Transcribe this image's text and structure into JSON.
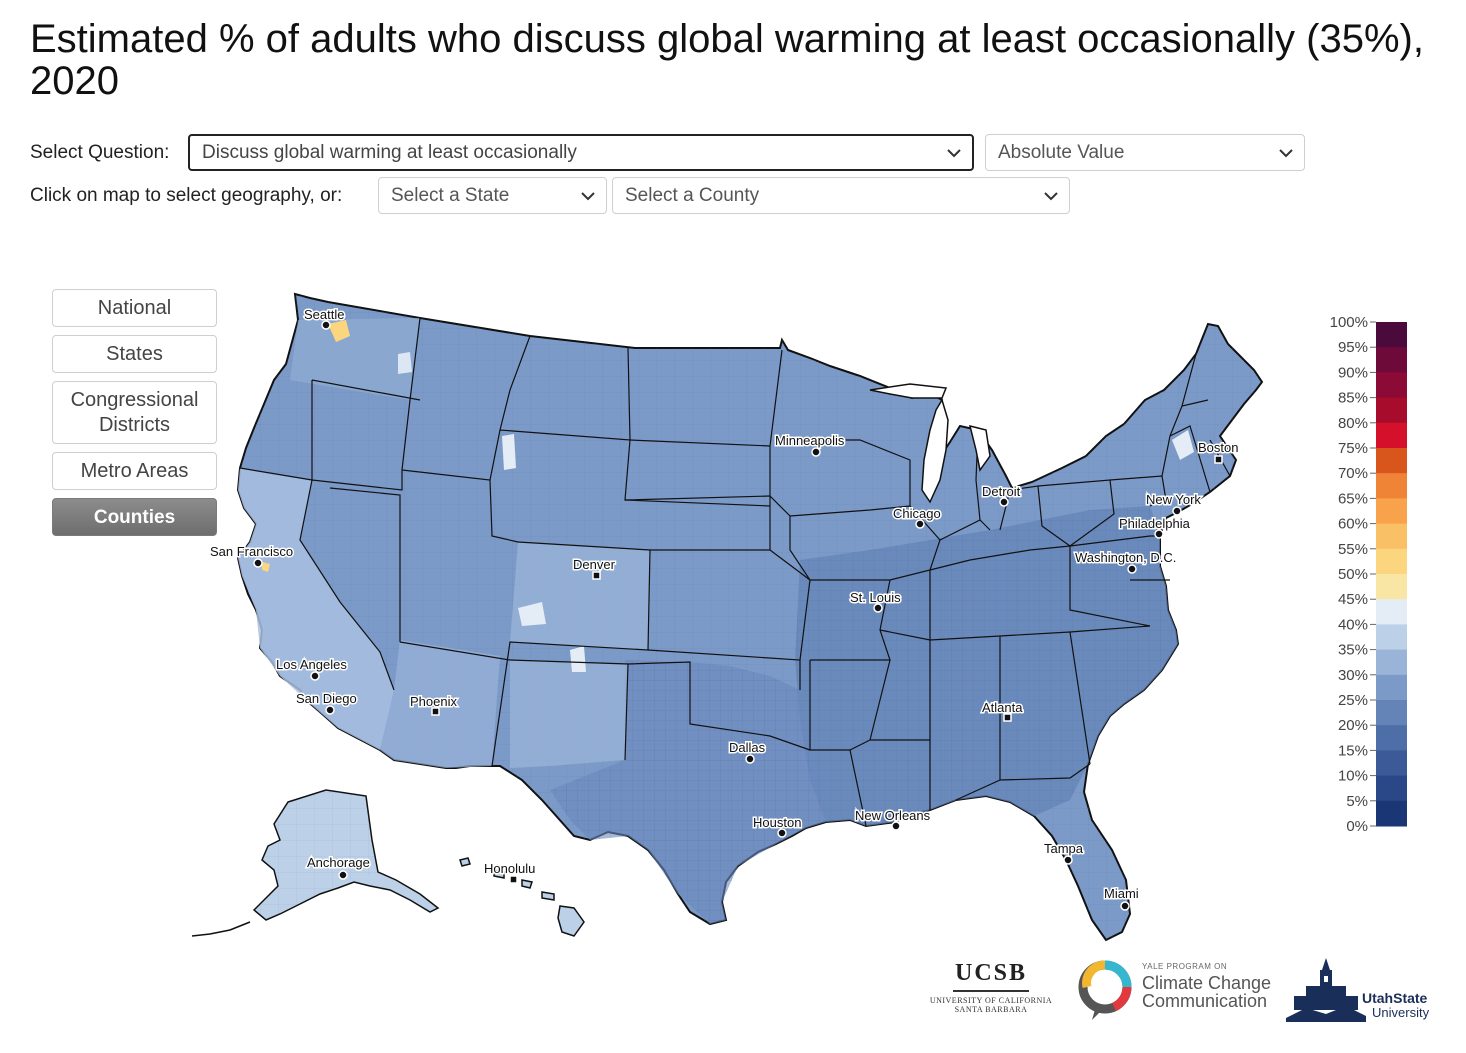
{
  "title": "Estimated % of adults who discuss global warming at least occasionally (35%), 2020",
  "controls": {
    "select_question_label": "Select Question:",
    "question_value": "Discuss global warming at least occasionally",
    "measure_value": "Absolute Value",
    "geography_label": "Click on map to select geography, or:",
    "state_placeholder": "Select a State",
    "county_placeholder": "Select a County"
  },
  "geography_buttons": [
    {
      "label": "National",
      "selected": false
    },
    {
      "label": "States",
      "selected": false
    },
    {
      "label": "Congressional Districts",
      "selected": false
    },
    {
      "label": "Metro Areas",
      "selected": false
    },
    {
      "label": "Counties",
      "selected": true
    }
  ],
  "map": {
    "cities": [
      {
        "name": "Seattle",
        "marker": "dot"
      },
      {
        "name": "San Francisco",
        "marker": "dot"
      },
      {
        "name": "Los Angeles",
        "marker": "dot"
      },
      {
        "name": "San Diego",
        "marker": "dot"
      },
      {
        "name": "Phoenix",
        "marker": "square"
      },
      {
        "name": "Denver",
        "marker": "square"
      },
      {
        "name": "Dallas",
        "marker": "dot"
      },
      {
        "name": "Houston",
        "marker": "dot"
      },
      {
        "name": "Minneapolis",
        "marker": "dot"
      },
      {
        "name": "St. Louis",
        "marker": "dot"
      },
      {
        "name": "Chicago",
        "marker": "dot"
      },
      {
        "name": "Detroit",
        "marker": "dot"
      },
      {
        "name": "New Orleans",
        "marker": "dot"
      },
      {
        "name": "Atlanta",
        "marker": "square"
      },
      {
        "name": "Tampa",
        "marker": "dot"
      },
      {
        "name": "Miami",
        "marker": "dot"
      },
      {
        "name": "Washington, D.C.",
        "marker": "dot"
      },
      {
        "name": "Philadelphia",
        "marker": "dot"
      },
      {
        "name": "New York",
        "marker": "dot"
      },
      {
        "name": "Boston",
        "marker": "square"
      },
      {
        "name": "Anchorage",
        "marker": "dot"
      },
      {
        "name": "Honolulu",
        "marker": "square"
      }
    ]
  },
  "legend": {
    "labels": [
      "100%",
      "95%",
      "90%",
      "85%",
      "80%",
      "75%",
      "70%",
      "65%",
      "60%",
      "55%",
      "50%",
      "45%",
      "40%",
      "35%",
      "30%",
      "25%",
      "20%",
      "15%",
      "10%",
      "5%",
      "0%"
    ],
    "colors": [
      "#4a0a3c",
      "#6e0a3a",
      "#8c0a36",
      "#a80c2c",
      "#d4102a",
      "#d8561c",
      "#f08436",
      "#f8a24c",
      "#fac066",
      "#fcd67e",
      "#fae6a4",
      "#e4edf6",
      "#bcd0e8",
      "#9ab4d8",
      "#7c9ac8",
      "#6484b8",
      "#4e6ea8",
      "#3c5a98",
      "#2a4888",
      "#1a3674",
      "#0c2460"
    ]
  },
  "logos": {
    "ucsb_title": "UCSB",
    "ucsb_sub1": "UNIVERSITY OF CALIFORNIA",
    "ucsb_sub2": "SANTA BARBARA",
    "ycc_small": "YALE PROGRAM ON",
    "ycc_line1": "Climate Change",
    "ycc_line2": "Communication",
    "usu_line1": "UtahState",
    "usu_line2": "University"
  },
  "colors": {
    "map_fill": "#7c9ac8",
    "map_fill_dark": "#6484b8",
    "map_fill_light": "#9ab4d8",
    "map_fill_lighter": "#bcd0e8",
    "map_fill_yellow": "#fcd67e",
    "map_stroke": "#111111",
    "button_selected": "#7a7a7a"
  }
}
